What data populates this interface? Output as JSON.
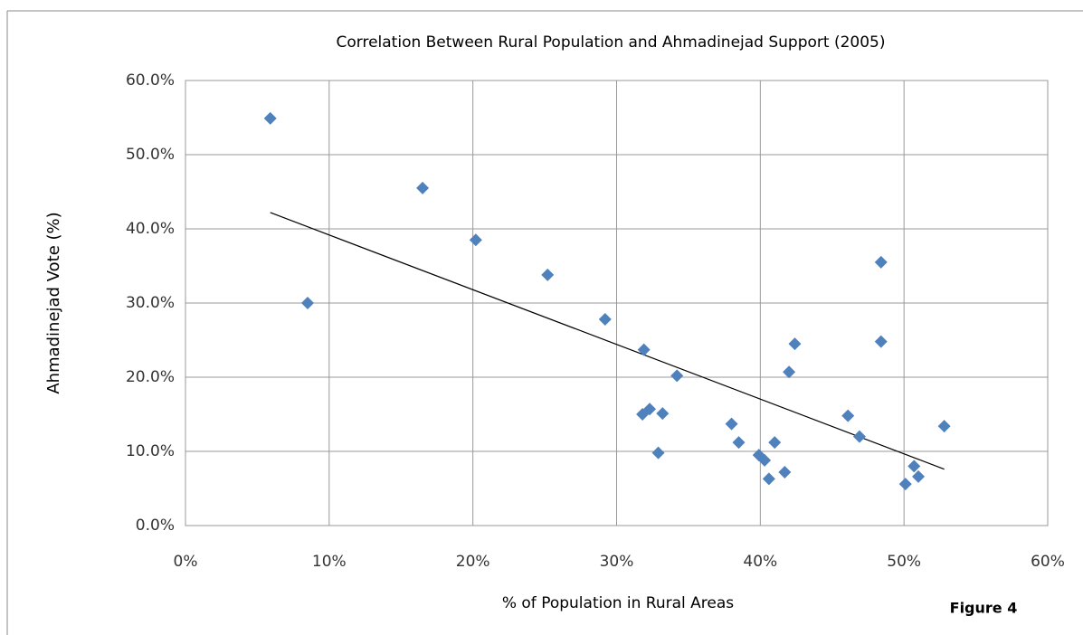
{
  "chart_data": {
    "type": "scatter",
    "title": "Correlation Between Rural Population and Ahmadinejad Support (2005)",
    "x_label": "% of Population in Rural Areas",
    "y_label": "Ahmadinejad Vote (%)",
    "annotation": "Figure 4",
    "series": [
      {
        "color": "#4f81bd",
        "x": [
          5.9,
          8.5,
          16.5,
          20.2,
          25.2,
          29.2,
          31.9,
          31.8,
          32.3,
          33.2,
          32.9,
          34.2,
          38.0,
          38.5,
          39.9,
          40.3,
          40.6,
          41.0,
          41.7,
          42.0,
          42.4,
          46.1,
          46.9,
          48.4,
          48.4,
          50.1,
          50.7,
          51.0,
          52.8
        ],
        "values": [
          54.9,
          30.0,
          45.5,
          38.5,
          33.8,
          27.8,
          23.7,
          15.0,
          15.7,
          15.1,
          9.8,
          20.2,
          13.7,
          11.2,
          9.5,
          8.8,
          6.3,
          11.2,
          7.2,
          20.7,
          24.5,
          14.8,
          12.0,
          35.5,
          24.8,
          5.6,
          8.0,
          6.6,
          13.4
        ]
      }
    ],
    "trendline": {
      "color": "#000000",
      "x": [
        5.9,
        52.8
      ],
      "values": [
        42.2,
        7.6
      ]
    },
    "xlim": [
      0,
      60
    ],
    "xticks": [
      {
        "value": 0,
        "label": "0%"
      },
      {
        "value": 10,
        "label": "10%"
      },
      {
        "value": 20,
        "label": "20%"
      },
      {
        "value": 30,
        "label": "30%"
      },
      {
        "value": 40,
        "label": "40%"
      },
      {
        "value": 50,
        "label": "50%"
      },
      {
        "value": 60,
        "label": "60%"
      }
    ],
    "ylim": [
      0,
      60
    ],
    "yticks": [
      {
        "value": 0,
        "label": "0.0%"
      },
      {
        "value": 10,
        "label": "10.0%"
      },
      {
        "value": 20,
        "label": "20.0%"
      },
      {
        "value": 30,
        "label": "30.0%"
      },
      {
        "value": 40,
        "label": "40.0%"
      },
      {
        "value": 50,
        "label": "50.0%"
      },
      {
        "value": 60,
        "label": "60.0%"
      }
    ],
    "grid": true
  }
}
